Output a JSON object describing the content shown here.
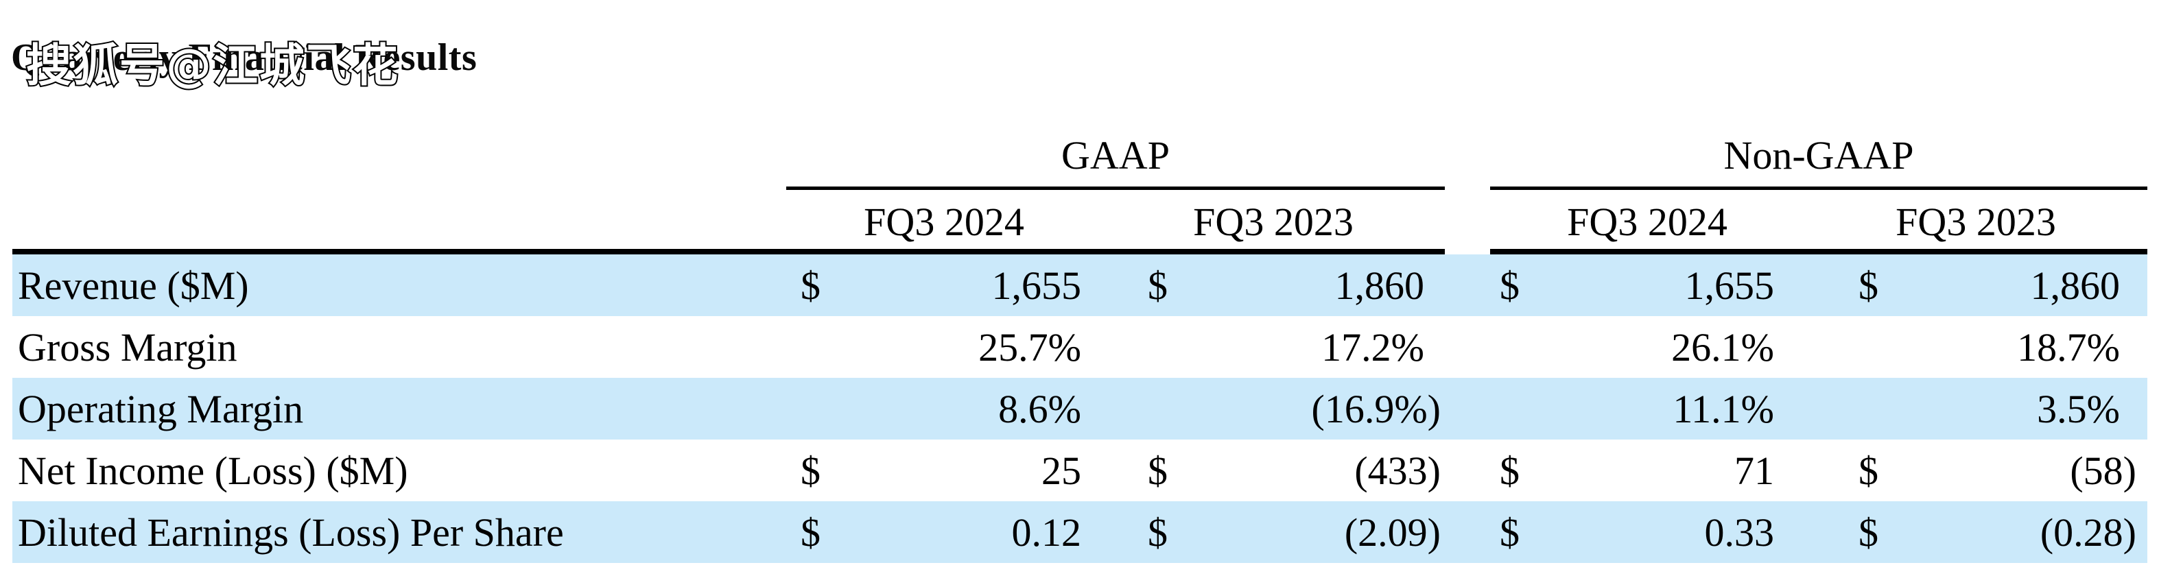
{
  "document": {
    "title": "Quarterly Financial Results",
    "watermark": "搜狐号@江城飞花"
  },
  "table": {
    "group_headers": [
      {
        "label": "GAAP"
      },
      {
        "label": "Non-GAAP"
      }
    ],
    "column_headers": [
      "FQ3 2024",
      "FQ3 2023",
      "FQ3 2024",
      "FQ3 2023"
    ],
    "rows": [
      {
        "label": "Revenue ($M)",
        "cells": [
          {
            "currency": "$",
            "value": "1,655"
          },
          {
            "currency": "$",
            "value": "1,860"
          },
          {
            "currency": "$",
            "value": "1,655"
          },
          {
            "currency": "$",
            "value": "1,860"
          }
        ]
      },
      {
        "label": "Gross Margin",
        "cells": [
          {
            "currency": "",
            "value": "25.7%"
          },
          {
            "currency": "",
            "value": "17.2%"
          },
          {
            "currency": "",
            "value": "26.1%"
          },
          {
            "currency": "",
            "value": "18.7%"
          }
        ]
      },
      {
        "label": "Operating Margin",
        "cells": [
          {
            "currency": "",
            "value": "8.6%"
          },
          {
            "currency": "",
            "value": "(16.9%)"
          },
          {
            "currency": "",
            "value": "11.1%"
          },
          {
            "currency": "",
            "value": "3.5%"
          }
        ]
      },
      {
        "label": "Net Income (Loss) ($M)",
        "cells": [
          {
            "currency": "$",
            "value": "25"
          },
          {
            "currency": "$",
            "value": "(433)"
          },
          {
            "currency": "$",
            "value": "71"
          },
          {
            "currency": "$",
            "value": "(58)"
          }
        ]
      },
      {
        "label": "Diluted Earnings (Loss) Per Share",
        "cells": [
          {
            "currency": "$",
            "value": "0.12"
          },
          {
            "currency": "$",
            "value": "(2.09)"
          },
          {
            "currency": "$",
            "value": "0.33"
          },
          {
            "currency": "$",
            "value": "(0.28)"
          }
        ]
      }
    ],
    "colors": {
      "row_highlight": "#cbe9fa",
      "rule": "#000000"
    }
  }
}
